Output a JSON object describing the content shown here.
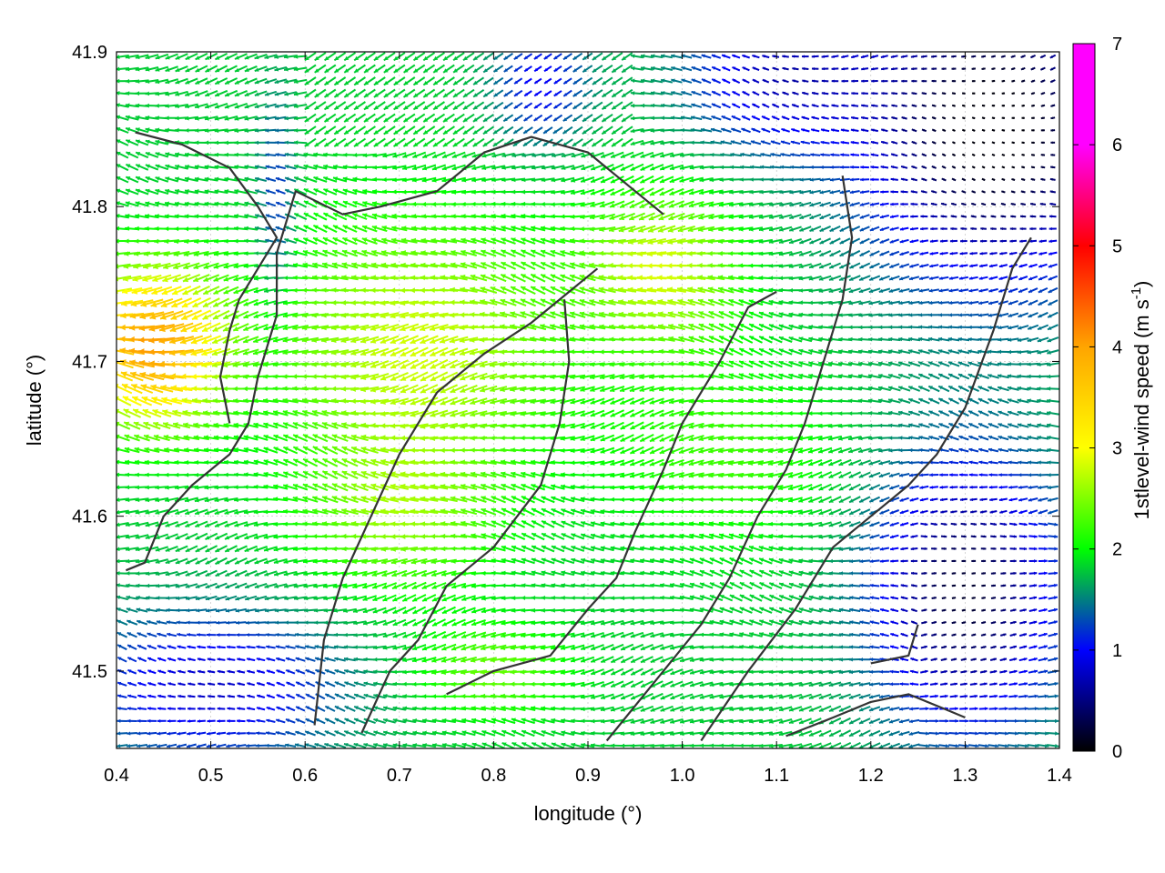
{
  "chart_data": {
    "type": "vector-field",
    "xlabel": "longitude (°)",
    "ylabel": "latitude (°)",
    "colorbar_label": "1stlevel-wind speed (m s-1)",
    "colorbar_label_parts": {
      "main": "1stlevel-wind speed (m s",
      "sup": "-1",
      "close": ")"
    },
    "xlim": [
      0.4,
      1.4
    ],
    "ylim": [
      41.45,
      41.9
    ],
    "clim": [
      0,
      7
    ],
    "x_ticks": [
      "0.4",
      "0.5",
      "0.6",
      "0.7",
      "0.8",
      "0.9",
      "1.0",
      "1.1",
      "1.2",
      "1.3",
      "1.4"
    ],
    "y_ticks": [
      "41.5",
      "41.6",
      "41.7",
      "41.8",
      "41.9"
    ],
    "colorbar_ticks": [
      "0",
      "1",
      "2",
      "3",
      "4",
      "5",
      "6",
      "7"
    ],
    "colormap": [
      "#000000",
      "#0000ff",
      "#00ff00",
      "#ffff00",
      "#ffa500",
      "#ff0000",
      "#ff00ff"
    ],
    "grid": true,
    "arrow_direction": "predominantly westward (east wind)",
    "speed_regions": [
      {
        "area": "west edge, lat 41.65-41.76",
        "speed": 4.5
      },
      {
        "area": "central plateau",
        "speed": 3.2
      },
      {
        "area": "southeast corner",
        "speed": 0.8
      },
      {
        "area": "northeast corner",
        "speed": 0.3
      }
    ],
    "contour_lines": [
      [
        [
          0.42,
          41.848
        ],
        [
          0.47,
          41.84
        ],
        [
          0.52,
          41.825
        ],
        [
          0.55,
          41.8
        ],
        [
          0.57,
          41.78
        ],
        [
          0.55,
          41.76
        ],
        [
          0.53,
          41.74
        ],
        [
          0.52,
          41.72
        ],
        [
          0.51,
          41.69
        ],
        [
          0.52,
          41.66
        ]
      ],
      [
        [
          0.41,
          41.565
        ],
        [
          0.43,
          41.57
        ],
        [
          0.45,
          41.6
        ],
        [
          0.48,
          41.62
        ],
        [
          0.52,
          41.64
        ],
        [
          0.54,
          41.66
        ],
        [
          0.55,
          41.69
        ],
        [
          0.57,
          41.73
        ],
        [
          0.57,
          41.77
        ],
        [
          0.59,
          41.81
        ],
        [
          0.64,
          41.795
        ],
        [
          0.68,
          41.8
        ],
        [
          0.74,
          41.81
        ],
        [
          0.79,
          41.835
        ],
        [
          0.84,
          41.845
        ],
        [
          0.9,
          41.835
        ],
        [
          0.95,
          41.81
        ],
        [
          0.98,
          41.795
        ]
      ],
      [
        [
          0.61,
          41.465
        ],
        [
          0.62,
          41.52
        ],
        [
          0.64,
          41.56
        ],
        [
          0.67,
          41.6
        ],
        [
          0.7,
          41.64
        ],
        [
          0.74,
          41.68
        ],
        [
          0.79,
          41.705
        ],
        [
          0.84,
          41.725
        ],
        [
          0.87,
          41.74
        ],
        [
          0.91,
          41.76
        ]
      ],
      [
        [
          0.66,
          41.46
        ],
        [
          0.69,
          41.5
        ],
        [
          0.72,
          41.52
        ],
        [
          0.75,
          41.555
        ],
        [
          0.8,
          41.58
        ],
        [
          0.85,
          41.62
        ],
        [
          0.87,
          41.66
        ],
        [
          0.88,
          41.7
        ],
        [
          0.875,
          41.74
        ]
      ],
      [
        [
          0.75,
          41.485
        ],
        [
          0.8,
          41.5
        ],
        [
          0.86,
          41.51
        ],
        [
          0.9,
          41.54
        ],
        [
          0.93,
          41.56
        ],
        [
          0.95,
          41.59
        ],
        [
          0.98,
          41.63
        ],
        [
          1.0,
          41.66
        ],
        [
          1.04,
          41.7
        ],
        [
          1.07,
          41.735
        ],
        [
          1.1,
          41.745
        ]
      ],
      [
        [
          0.92,
          41.455
        ],
        [
          0.98,
          41.5
        ],
        [
          1.02,
          41.53
        ],
        [
          1.05,
          41.56
        ],
        [
          1.08,
          41.6
        ],
        [
          1.11,
          41.63
        ],
        [
          1.13,
          41.66
        ],
        [
          1.15,
          41.7
        ],
        [
          1.17,
          41.74
        ],
        [
          1.18,
          41.78
        ],
        [
          1.17,
          41.82
        ]
      ],
      [
        [
          1.02,
          41.455
        ],
        [
          1.07,
          41.5
        ],
        [
          1.12,
          41.54
        ],
        [
          1.16,
          41.58
        ],
        [
          1.2,
          41.6
        ],
        [
          1.24,
          41.62
        ],
        [
          1.27,
          41.64
        ],
        [
          1.3,
          41.67
        ],
        [
          1.33,
          41.72
        ],
        [
          1.35,
          41.76
        ],
        [
          1.37,
          41.78
        ]
      ],
      [
        [
          1.11,
          41.458
        ],
        [
          1.16,
          41.47
        ],
        [
          1.2,
          41.48
        ],
        [
          1.24,
          41.485
        ],
        [
          1.28,
          41.475
        ],
        [
          1.3,
          41.47
        ]
      ],
      [
        [
          1.2,
          41.505
        ],
        [
          1.24,
          41.51
        ],
        [
          1.25,
          41.53
        ]
      ]
    ]
  }
}
